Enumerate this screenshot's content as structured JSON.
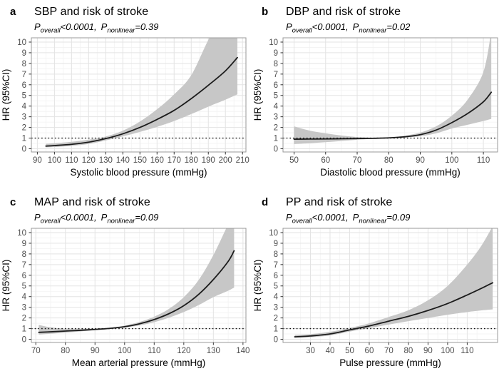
{
  "figure": {
    "panels": [
      {
        "letter": "a",
        "title": "SBP and risk of stroke",
        "p_label": "P",
        "overall_sub": "overall",
        "overall_val": "<0.0001,",
        "nonlinear_sub": "nonlinear",
        "nonlinear_val": "=0.39"
      },
      {
        "letter": "b",
        "title": "DBP and risk of stroke",
        "p_label": "P",
        "overall_sub": "overall",
        "overall_val": "<0.0001,",
        "nonlinear_sub": "nonlinear",
        "nonlinear_val": "=0.02"
      },
      {
        "letter": "c",
        "title": "MAP and risk of stroke",
        "p_label": "P",
        "overall_sub": "overall",
        "overall_val": "<0.0001,",
        "nonlinear_sub": "nonlinear",
        "nonlinear_val": "=0.09"
      },
      {
        "letter": "d",
        "title": "PP and risk of stroke",
        "p_label": "P",
        "overall_sub": "overall",
        "overall_val": "<0.0001,",
        "nonlinear_sub": "nonlinear",
        "nonlinear_val": "=0.09"
      }
    ]
  },
  "colors": {
    "curve": "#1c1c1c",
    "ci_band": "#c7c7c7",
    "grid_major": "#e3e3e3",
    "grid_minor": "#f2f2f2",
    "panel_border": "#999999",
    "tick": "#333333",
    "tick_label": "#4d4d4d",
    "reference_line": "#111111",
    "axis_title": "#000000"
  },
  "chart_data": [
    {
      "type": "line",
      "panel": "a",
      "title": "SBP and risk of stroke",
      "p_overall": "<0.0001",
      "p_nonlinear": "0.39",
      "xlabel": "Systolic blood pressure (mmHg)",
      "ylabel": "HR (95%CI)",
      "xlim": [
        86.5,
        212
      ],
      "ylim": [
        -0.3,
        10.4
      ],
      "xticks": [
        90,
        100,
        110,
        120,
        130,
        140,
        150,
        160,
        170,
        180,
        190,
        200,
        210
      ],
      "yticks": [
        0,
        1,
        2,
        3,
        4,
        5,
        6,
        7,
        8,
        9,
        10
      ],
      "reference_line_y": 1,
      "grid": true,
      "x": [
        95,
        100,
        110,
        120,
        130,
        140,
        150,
        160,
        170,
        180,
        190,
        200,
        207
      ],
      "hr": [
        0.25,
        0.3,
        0.42,
        0.62,
        0.95,
        1.4,
        2.0,
        2.75,
        3.6,
        4.7,
        5.95,
        7.3,
        8.55
      ],
      "ci_lower": [
        0.13,
        0.17,
        0.27,
        0.45,
        0.78,
        1.16,
        1.58,
        2.05,
        2.6,
        3.25,
        3.95,
        4.6,
        5.1
      ],
      "ci_upper": [
        0.47,
        0.52,
        0.65,
        0.85,
        1.15,
        1.7,
        2.55,
        3.7,
        5.1,
        6.9,
        10.2,
        13.0,
        14.5
      ]
    },
    {
      "type": "line",
      "panel": "b",
      "title": "DBP and risk of stroke",
      "p_overall": "<0.0001",
      "p_nonlinear": "0.02",
      "xlabel": "Diastolic blood pressure (mmHg)",
      "ylabel": "HR (95%CI)",
      "xlim": [
        46.5,
        114.5
      ],
      "ylim": [
        -0.3,
        10.4
      ],
      "xticks": [
        50,
        60,
        70,
        80,
        90,
        100,
        110
      ],
      "yticks": [
        0,
        1,
        2,
        3,
        4,
        5,
        6,
        7,
        8,
        9,
        10
      ],
      "reference_line_y": 1,
      "grid": true,
      "x": [
        50,
        55,
        60,
        65,
        70,
        75,
        80,
        85,
        90,
        95,
        100,
        105,
        110,
        112.5
      ],
      "hr": [
        0.9,
        0.91,
        0.92,
        0.94,
        0.96,
        0.98,
        1.02,
        1.12,
        1.32,
        1.75,
        2.45,
        3.3,
        4.4,
        5.3
      ],
      "ci_lower": [
        0.44,
        0.52,
        0.62,
        0.73,
        0.84,
        0.93,
        0.99,
        1.05,
        1.18,
        1.45,
        1.9,
        2.25,
        2.6,
        2.8
      ],
      "ci_upper": [
        2.1,
        1.7,
        1.45,
        1.25,
        1.1,
        1.04,
        1.06,
        1.22,
        1.52,
        2.1,
        3.1,
        4.6,
        7.2,
        11.0
      ]
    },
    {
      "type": "line",
      "panel": "c",
      "title": "MAP and risk of stroke",
      "p_overall": "<0.0001",
      "p_nonlinear": "0.09",
      "xlabel": "Mean arterial pressure (mmHg)",
      "ylabel": "HR (95%CI)",
      "xlim": [
        68.5,
        141
      ],
      "ylim": [
        -0.3,
        10.4
      ],
      "xticks": [
        70,
        80,
        90,
        100,
        110,
        120,
        130,
        140
      ],
      "yticks": [
        0,
        1,
        2,
        3,
        4,
        5,
        6,
        7,
        8,
        9,
        10
      ],
      "reference_line_y": 1,
      "grid": true,
      "x": [
        71,
        75,
        80,
        85,
        90,
        95,
        100,
        105,
        110,
        115,
        120,
        125,
        130,
        135,
        137
      ],
      "hr": [
        0.65,
        0.7,
        0.77,
        0.84,
        0.92,
        1.02,
        1.18,
        1.45,
        1.85,
        2.4,
        3.15,
        4.2,
        5.6,
        7.3,
        8.3
      ],
      "ci_lower": [
        0.44,
        0.52,
        0.62,
        0.73,
        0.85,
        0.97,
        1.1,
        1.3,
        1.6,
        2.02,
        2.55,
        3.2,
        3.95,
        4.55,
        4.85
      ],
      "ci_upper": [
        1.35,
        1.12,
        0.98,
        0.96,
        1.0,
        1.08,
        1.28,
        1.62,
        2.12,
        2.85,
        3.95,
        5.55,
        7.9,
        10.8,
        12.0
      ]
    },
    {
      "type": "line",
      "panel": "d",
      "title": "PP and risk of stroke",
      "p_overall": "<0.0001",
      "p_nonlinear": "0.09",
      "xlabel": "Pulse pressure (mmHg)",
      "ylabel": "HR (95%CI)",
      "xlim": [
        16,
        125.5
      ],
      "ylim": [
        -0.3,
        10.4
      ],
      "xticks": [
        30,
        40,
        50,
        60,
        70,
        80,
        90,
        100,
        110
      ],
      "yticks": [
        0,
        1,
        2,
        3,
        4,
        5,
        6,
        7,
        8,
        9,
        10
      ],
      "reference_line_y": 1,
      "grid": true,
      "x": [
        22,
        30,
        40,
        50,
        60,
        70,
        80,
        90,
        100,
        110,
        117,
        123
      ],
      "hr": [
        0.23,
        0.31,
        0.5,
        0.88,
        1.25,
        1.7,
        2.15,
        2.7,
        3.35,
        4.15,
        4.75,
        5.3
      ],
      "ci_lower": [
        0.13,
        0.19,
        0.36,
        0.72,
        1.05,
        1.38,
        1.7,
        2.0,
        2.3,
        2.55,
        2.7,
        2.8
      ],
      "ci_upper": [
        0.42,
        0.48,
        0.7,
        1.06,
        1.5,
        2.1,
        2.72,
        3.65,
        5.0,
        7.0,
        8.7,
        10.6
      ]
    }
  ]
}
